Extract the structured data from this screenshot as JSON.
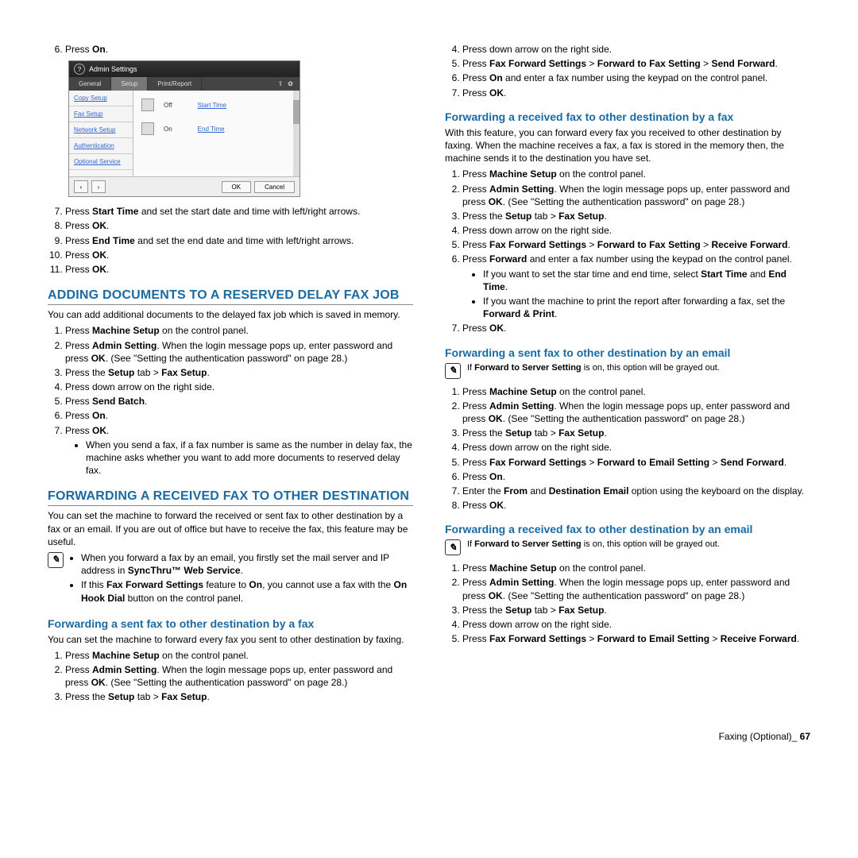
{
  "screenshot": {
    "title": "Admin Settings",
    "tabs": {
      "t1": "General",
      "t2": "Setup",
      "t3": "Print/Report"
    },
    "side": {
      "s1": "Copy Setup",
      "s2": "Fax Setup",
      "s3": "Network Setup",
      "s4": "Authentication",
      "s5": "Optional Service"
    },
    "rows": {
      "r1_state": "Off",
      "r1_btn": "Start Time",
      "r2_state": "On",
      "r2_btn": "End Time"
    },
    "footer": {
      "ok": "OK",
      "cancel": "Cancel"
    }
  },
  "leftCol": {
    "step6_pre": "Press ",
    "step6_b": "On",
    "step6_post": ".",
    "step7_pre": "Press ",
    "step7_b": "Start Time",
    "step7_post": " and set the start date and time with left/right arrows.",
    "step8_pre": "Press ",
    "step8_b": "OK",
    "step8_post": ".",
    "step9_pre": "Press ",
    "step9_b": "End Time",
    "step9_post": " and set the end date and time with left/right arrows.",
    "step10_pre": "Press ",
    "step10_b": "OK",
    "step10_post": ".",
    "step11_pre": "Press ",
    "step11_b": "OK",
    "step11_post": ".",
    "secA_title": "ADDING DOCUMENTS TO A RESERVED DELAY FAX JOB",
    "secA_intro": "You can add additional documents to the delayed fax job which is saved in memory.",
    "a1_pre": "Press ",
    "a1_b": "Machine Setup",
    "a1_post": " on the control panel.",
    "a2_pre": "Press ",
    "a2_b": "Admin Setting",
    "a2_mid": ". When the login message pops up, enter password and press ",
    "a2_b2": "OK",
    "a2_post": ". (See \"Setting the authentication password\" on page 28.)",
    "a3_pre": "Press the ",
    "a3_b": "Setup",
    "a3_mid": " tab > ",
    "a3_b2": "Fax Setup",
    "a3_post": ".",
    "a4": "Press down arrow on the right side.",
    "a5_pre": "Press ",
    "a5_b": "Send Batch",
    "a5_post": ".",
    "a6_pre": "Press ",
    "a6_b": "On",
    "a6_post": ".",
    "a7_pre": "Press ",
    "a7_b": "OK",
    "a7_post": ".",
    "a7_bullet": "When you send a fax, if a fax number is same as the number in delay fax, the machine asks whether you want to add more documents to reserved delay fax.",
    "secB_title": "FORWARDING A RECEIVED FAX TO OTHER DESTINATION",
    "secB_intro": "You can set the machine to forward the received or sent fax to other destination by a fax or an email. If you are out of office but have to receive the fax, this feature may be useful.",
    "note1_b1_pre": "When you forward a fax by an email, you firstly set the mail server and IP address in ",
    "note1_b1_b": "SyncThru™ Web Service",
    "note1_b1_post": ".",
    "note1_b2_pre": "If this ",
    "note1_b2_b": "Fax Forward Settings",
    "note1_b2_mid": " feature to ",
    "note1_b2_b2": "On",
    "note1_b2_mid2": ", you cannot use a fax with the ",
    "note1_b2_b3": "On Hook Dial",
    "note1_b2_post": " button on the control panel.",
    "subB1_title": "Forwarding a sent fax to other destination by a fax",
    "subB1_intro": "You can set the machine to forward every fax you sent to other destination by faxing.",
    "b1_pre": "Press ",
    "b1_b": "Machine Setup",
    "b1_post": " on the control panel.",
    "b2_pre": "Press ",
    "b2_b": "Admin Setting",
    "b2_mid": ". When the login message pops up, enter password and press ",
    "b2_b2": "OK",
    "b2_post": ". (See \"Setting the authentication password\" on page 28.)",
    "b3_pre": "Press the ",
    "b3_b": "Setup",
    "b3_mid": " tab > ",
    "b3_b2": "Fax Setup",
    "b3_post": "."
  },
  "rightCol": {
    "c4": "Press down arrow on the right side.",
    "c5_pre": "Press ",
    "c5_b": "Fax Forward Settings",
    "c5_mid": " > ",
    "c5_b2": "Forward to Fax Setting",
    "c5_mid2": " > ",
    "c5_b3": "Send Forward",
    "c5_post": ".",
    "c6_pre": "Press ",
    "c6_b": "On",
    "c6_post": " and enter a fax number using the keypad on the control panel.",
    "c7_pre": "Press ",
    "c7_b": "OK",
    "c7_post": ".",
    "subD_title": "Forwarding a received fax to other destination by a fax",
    "subD_intro": "With this feature, you can forward every fax you received to other destination by faxing. When the machine receives a fax, a fax is stored in the memory then, the machine sends it to the destination you have set.",
    "d1_pre": "Press ",
    "d1_b": "Machine Setup",
    "d1_post": " on the control panel.",
    "d2_pre": "Press ",
    "d2_b": "Admin Setting",
    "d2_mid": ". When the login message pops up, enter password and press ",
    "d2_b2": "OK",
    "d2_post": ". (See \"Setting the authentication password\" on page 28.)",
    "d3_pre": "Press the ",
    "d3_b": "Setup",
    "d3_mid": " tab > ",
    "d3_b2": "Fax Setup",
    "d3_post": ".",
    "d4": "Press down arrow on the right side.",
    "d5_pre": "Press ",
    "d5_b": "Fax Forward Settings",
    "d5_mid": " > ",
    "d5_b2": "Forward to Fax Setting",
    "d5_mid2": " > ",
    "d5_b3": "Receive Forward",
    "d5_post": ".",
    "d6_pre": "Press ",
    "d6_b": "Forward",
    "d6_post": " and enter a fax number using the keypad on the control panel.",
    "d6_b1_pre": "If you want to set the star time and end time, select ",
    "d6_b1_b": "Start Time",
    "d6_b1_mid": " and ",
    "d6_b1_b2": "End Time",
    "d6_b1_post": ".",
    "d6_b2_pre": "If you want the machine to print the report after forwarding a fax, set the ",
    "d6_b2_b": "Forward & Print",
    "d6_b2_post": ".",
    "d7_pre": "Press ",
    "d7_b": "OK",
    "d7_post": ".",
    "subE_title": "Forwarding a sent fax to other destination by an email",
    "noteE_pre": "If ",
    "noteE_b": "Forward to Server Setting",
    "noteE_post": " is on, this option will be grayed out.",
    "e1_pre": "Press ",
    "e1_b": "Machine Setup",
    "e1_post": " on the control panel.",
    "e2_pre": "Press ",
    "e2_b": "Admin Setting",
    "e2_mid": ". When the login message pops up, enter password and press ",
    "e2_b2": "OK",
    "e2_post": ". (See \"Setting the authentication password\" on page 28.)",
    "e3_pre": "Press the ",
    "e3_b": "Setup",
    "e3_mid": " tab > ",
    "e3_b2": "Fax Setup",
    "e3_post": ".",
    "e4": "Press down arrow on the right side.",
    "e5_pre": "Press ",
    "e5_b": "Fax Forward Settings",
    "e5_mid": " > ",
    "e5_b2": "Forward to Email Setting",
    "e5_mid2": " > ",
    "e5_b3": "Send Forward",
    "e5_post": ".",
    "e6_pre": "Press ",
    "e6_b": "On",
    "e6_post": ".",
    "e7_pre": "Enter the ",
    "e7_b": "From",
    "e7_mid": " and ",
    "e7_b2": "Destination Email",
    "e7_post": " option using the keyboard on the display.",
    "e8_pre": "Press ",
    "e8_b": "OK",
    "e8_post": ".",
    "subF_title": "Forwarding a received fax to other destination by an email",
    "noteF_pre": "If ",
    "noteF_b": "Forward to Server Setting",
    "noteF_post": " is on, this option will be grayed out.",
    "f1_pre": "Press ",
    "f1_b": "Machine Setup",
    "f1_post": " on the control panel.",
    "f2_pre": "Press ",
    "f2_b": "Admin Setting",
    "f2_mid": ". When the login message pops up, enter password and press ",
    "f2_b2": "OK",
    "f2_post": ". (See \"Setting the authentication password\" on page 28.)",
    "f3_pre": "Press the ",
    "f3_b": "Setup",
    "f3_mid": " tab > ",
    "f3_b2": "Fax Setup",
    "f3_post": ".",
    "f4": "Press down arrow on the right side.",
    "f5_pre": "Press ",
    "f5_b": "Fax Forward Settings",
    "f5_mid": " > ",
    "f5_b2": "Forward to Email Setting",
    "f5_mid2": " > ",
    "f5_b3": "Receive Forward",
    "f5_post": "."
  },
  "footer": {
    "label": "Faxing (Optional)",
    "sep": "_ ",
    "page": "67"
  }
}
